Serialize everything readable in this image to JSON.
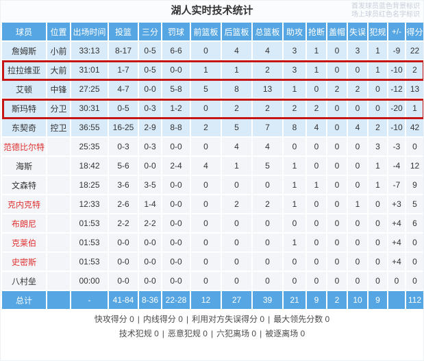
{
  "title": "湖人实时技术统计",
  "legend": {
    "line1": "首发球员蓝色背景标识",
    "line2": "场上球员红色名字标识"
  },
  "colors": {
    "header_blue": "#55a6e3",
    "starter_row_bg": "#d9eaf8",
    "bench_row_bg": "#f3f5f8",
    "oncourt_name_red": "#e03131",
    "highlight_border_red": "#c41414",
    "legend_gray": "#c7ced9"
  },
  "table": {
    "columns": [
      "球员",
      "位置",
      "出场时间",
      "投篮",
      "三分",
      "罚球",
      "前篮板",
      "后篮板",
      "总篮板",
      "助攻",
      "抢断",
      "盖帽",
      "失误",
      "犯规",
      "+/-",
      "得分"
    ],
    "rows": [
      {
        "name": "詹姆斯",
        "pos": "小前",
        "time": "33:13",
        "fg": "8-17",
        "tp": "0-5",
        "ft": "6-6",
        "orb": "0",
        "drb": "4",
        "trb": "4",
        "ast": "3",
        "stl": "1",
        "blk": "0",
        "tov": "3",
        "pf": "1",
        "pm": "-9",
        "pts": "22",
        "starter": true,
        "red_name": false,
        "outlined": false
      },
      {
        "name": "拉拉维亚",
        "pos": "大前",
        "time": "31:01",
        "fg": "1-7",
        "tp": "0-5",
        "ft": "0-0",
        "orb": "1",
        "drb": "1",
        "trb": "2",
        "ast": "3",
        "stl": "1",
        "blk": "0",
        "tov": "0",
        "pf": "1",
        "pm": "-10",
        "pts": "2",
        "starter": true,
        "red_name": false,
        "outlined": true
      },
      {
        "name": "艾顿",
        "pos": "中锋",
        "time": "27:25",
        "fg": "4-7",
        "tp": "0-0",
        "ft": "5-8",
        "orb": "5",
        "drb": "8",
        "trb": "13",
        "ast": "1",
        "stl": "0",
        "blk": "2",
        "tov": "2",
        "pf": "0",
        "pm": "-12",
        "pts": "13",
        "starter": true,
        "red_name": false,
        "outlined": false
      },
      {
        "name": "斯玛特",
        "pos": "分卫",
        "time": "30:31",
        "fg": "0-5",
        "tp": "0-3",
        "ft": "1-2",
        "orb": "0",
        "drb": "2",
        "trb": "2",
        "ast": "2",
        "stl": "2",
        "blk": "0",
        "tov": "0",
        "pf": "0",
        "pm": "-20",
        "pts": "1",
        "starter": true,
        "red_name": false,
        "outlined": true
      },
      {
        "name": "东契奇",
        "pos": "控卫",
        "time": "36:55",
        "fg": "16-25",
        "tp": "2-9",
        "ft": "8-8",
        "orb": "2",
        "drb": "5",
        "trb": "7",
        "ast": "8",
        "stl": "4",
        "blk": "0",
        "tov": "4",
        "pf": "2",
        "pm": "-10",
        "pts": "42",
        "starter": true,
        "red_name": false,
        "outlined": false
      },
      {
        "name": "范德比尔特",
        "pos": "",
        "time": "25:35",
        "fg": "0-3",
        "tp": "0-3",
        "ft": "0-0",
        "orb": "0",
        "drb": "4",
        "trb": "4",
        "ast": "0",
        "stl": "0",
        "blk": "0",
        "tov": "0",
        "pf": "3",
        "pm": "-3",
        "pts": "0",
        "starter": false,
        "red_name": true,
        "outlined": false
      },
      {
        "name": "海斯",
        "pos": "",
        "time": "18:42",
        "fg": "5-6",
        "tp": "0-0",
        "ft": "2-4",
        "orb": "4",
        "drb": "1",
        "trb": "5",
        "ast": "1",
        "stl": "0",
        "blk": "0",
        "tov": "0",
        "pf": "1",
        "pm": "-4",
        "pts": "12",
        "starter": false,
        "red_name": false,
        "outlined": false
      },
      {
        "name": "文森特",
        "pos": "",
        "time": "18:25",
        "fg": "3-6",
        "tp": "3-5",
        "ft": "0-0",
        "orb": "0",
        "drb": "0",
        "trb": "0",
        "ast": "1",
        "stl": "1",
        "blk": "0",
        "tov": "0",
        "pf": "1",
        "pm": "-7",
        "pts": "9",
        "starter": false,
        "red_name": false,
        "outlined": false
      },
      {
        "name": "克内克特",
        "pos": "",
        "time": "12:33",
        "fg": "2-6",
        "tp": "1-4",
        "ft": "0-0",
        "orb": "0",
        "drb": "2",
        "trb": "2",
        "ast": "1",
        "stl": "0",
        "blk": "0",
        "tov": "1",
        "pf": "0",
        "pm": "+3",
        "pts": "5",
        "starter": false,
        "red_name": true,
        "outlined": false
      },
      {
        "name": "布朗尼",
        "pos": "",
        "time": "01:53",
        "fg": "2-2",
        "tp": "2-2",
        "ft": "0-0",
        "orb": "0",
        "drb": "0",
        "trb": "0",
        "ast": "0",
        "stl": "0",
        "blk": "0",
        "tov": "0",
        "pf": "0",
        "pm": "+4",
        "pts": "6",
        "starter": false,
        "red_name": true,
        "outlined": false
      },
      {
        "name": "克莱伯",
        "pos": "",
        "time": "01:53",
        "fg": "0-0",
        "tp": "0-0",
        "ft": "0-0",
        "orb": "0",
        "drb": "0",
        "trb": "0",
        "ast": "1",
        "stl": "0",
        "blk": "0",
        "tov": "0",
        "pf": "0",
        "pm": "+4",
        "pts": "0",
        "starter": false,
        "red_name": true,
        "outlined": false
      },
      {
        "name": "史密斯",
        "pos": "",
        "time": "01:53",
        "fg": "0-0",
        "tp": "0-0",
        "ft": "0-0",
        "orb": "0",
        "drb": "0",
        "trb": "0",
        "ast": "0",
        "stl": "0",
        "blk": "0",
        "tov": "0",
        "pf": "0",
        "pm": "+4",
        "pts": "0",
        "starter": false,
        "red_name": true,
        "outlined": false
      },
      {
        "name": "八村垒",
        "pos": "",
        "time": "00:00",
        "fg": "0-0",
        "tp": "0-0",
        "ft": "0-0",
        "orb": "0",
        "drb": "0",
        "trb": "0",
        "ast": "0",
        "stl": "0",
        "blk": "0",
        "tov": "0",
        "pf": "0",
        "pm": "0",
        "pts": "0",
        "starter": false,
        "red_name": false,
        "outlined": false
      }
    ],
    "total": {
      "name": "总计",
      "pos": "",
      "time": "-",
      "fg": "41-84",
      "tp": "8-36",
      "ft": "22-28",
      "orb": "12",
      "drb": "27",
      "trb": "39",
      "ast": "21",
      "stl": "9",
      "blk": "2",
      "tov": "10",
      "pf": "9",
      "pm": "",
      "pts": "112"
    }
  },
  "footer": {
    "line1": [
      {
        "label": "快攻得分",
        "value": "0"
      },
      {
        "label": "内线得分",
        "value": "0"
      },
      {
        "label": "利用对方失误得分",
        "value": "0"
      },
      {
        "label": "最大领先分数",
        "value": "0"
      }
    ],
    "line2": [
      {
        "label": "技术犯规",
        "value": "0"
      },
      {
        "label": "恶意犯规",
        "value": "0"
      },
      {
        "label": "六犯离场",
        "value": "0"
      },
      {
        "label": "被逐离场",
        "value": "0"
      }
    ]
  }
}
